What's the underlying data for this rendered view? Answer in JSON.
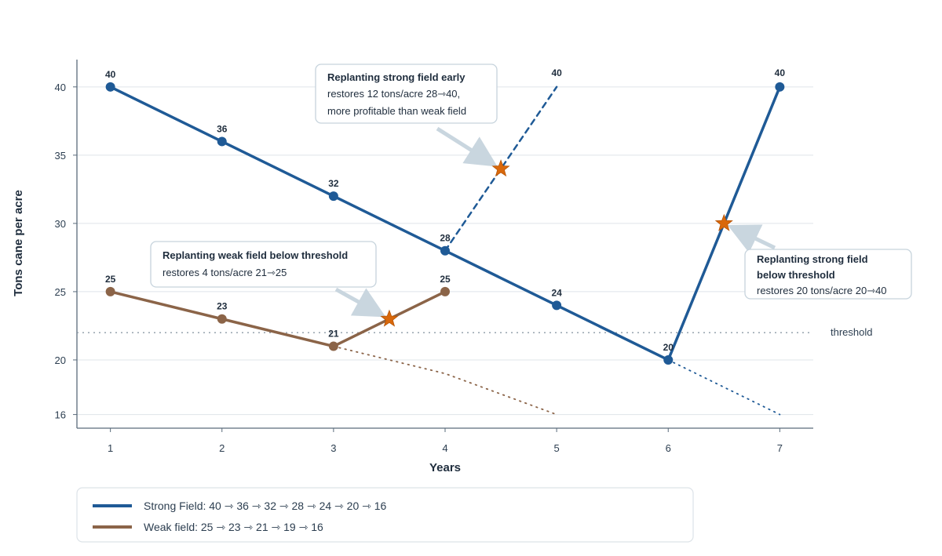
{
  "chart_data": {
    "type": "line",
    "xlabel": "Years",
    "ylabel": "Tons cane per acre",
    "xlim": [
      0.7,
      7.3
    ],
    "ylim": [
      15,
      42
    ],
    "x_ticks": [
      1,
      2,
      3,
      4,
      5,
      6,
      7
    ],
    "y_ticks": [
      16,
      20,
      25,
      30,
      35,
      40
    ],
    "grid": "horizontal",
    "colors": {
      "strong": "#1f5a96",
      "weak": "#8b6448",
      "star": "#d9680b",
      "arrow": "#c9d6df",
      "threshold": "#8d99a6"
    },
    "threshold": {
      "y": 22,
      "label": "threshold"
    },
    "series": [
      {
        "key": "strong",
        "x": [
          1,
          2,
          3,
          4,
          5,
          6
        ],
        "y": [
          40,
          36,
          32,
          28,
          24,
          20
        ],
        "labels": [
          "40",
          "36",
          "32",
          "28",
          "24",
          "20"
        ]
      },
      {
        "key": "weak",
        "x": [
          1,
          2,
          3,
          4
        ],
        "y": [
          25,
          23,
          21,
          25
        ],
        "labels": [
          "25",
          "23",
          "21",
          "25"
        ]
      }
    ],
    "extensions": [
      {
        "key": "strong-early-replant",
        "series": "strong",
        "style": "dashed",
        "x": [
          4,
          5
        ],
        "y": [
          28,
          40
        ],
        "end_label": "40"
      },
      {
        "key": "strong-late-replant",
        "series": "strong",
        "style": "solid",
        "x": [
          6,
          7
        ],
        "y": [
          20,
          40
        ],
        "end_label": "40",
        "end_marker": true
      },
      {
        "key": "strong-decline-projection",
        "series": "strong",
        "style": "dotted",
        "x": [
          6,
          7
        ],
        "y": [
          20,
          16
        ]
      },
      {
        "key": "weak-decline-projection",
        "series": "weak",
        "style": "dotted",
        "x": [
          3,
          4,
          5
        ],
        "y": [
          21,
          19,
          16
        ]
      }
    ],
    "stars": [
      {
        "key": "star-strong-early",
        "x": 4.5,
        "y": 34
      },
      {
        "key": "star-weak",
        "x": 3.5,
        "y": 23
      },
      {
        "key": "star-strong-late",
        "x": 6.5,
        "y": 30
      }
    ],
    "annotations": [
      {
        "key": "strong-early",
        "title": "Replanting strong field early",
        "lines": [
          "restores 12 tons/acre 28⇾40,",
          "more profitable than weak field"
        ]
      },
      {
        "key": "weak-threshold",
        "title": "Replanting weak field below threshold",
        "lines": [
          "restores 4 tons/acre 21⇾25"
        ]
      },
      {
        "key": "strong-threshold",
        "title": "Replanting strong field",
        "title2": "below threshold",
        "lines": [
          "restores 20 tons/acre 20⇾40"
        ]
      }
    ],
    "legend": {
      "placement": "bottom-left",
      "entries": [
        {
          "series": "strong",
          "text": "Strong Field: 40 ⇾ 36 ⇾ 32 ⇾ 28 ⇾ 24 ⇾ 20 ⇾ 16"
        },
        {
          "series": "weak",
          "text": "Weak field: 25 ⇾ 23 ⇾ 21 ⇾ 19 ⇾ 16"
        }
      ]
    }
  }
}
